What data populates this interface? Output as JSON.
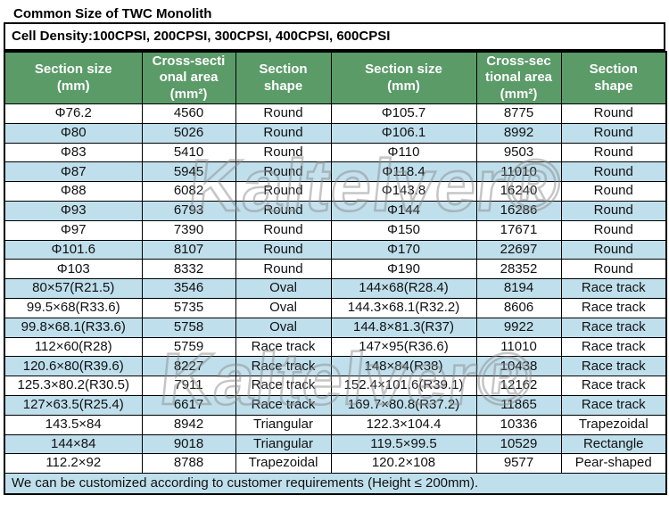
{
  "page": {
    "title": "Common Size of TWC Monolith",
    "subtitle": "Cell Density:100CPSI, 200CPSI, 300CPSI, 400CPSI, 600CPSI",
    "footer": "We can be customized according to customer requirements (Height ≤ 200mm).",
    "watermark": "Kaltelver®"
  },
  "colors": {
    "header_bg": "#5a9b68",
    "header_text": "#ffffff",
    "row_bg": "#ffffff",
    "row_alt_bg": "#bfdfec",
    "border": "#000000"
  },
  "table": {
    "headers": [
      "Section size\n(mm)",
      "Cross-secti\nonal area\n(mm²)",
      "Section\nshape",
      "Section size\n(mm)",
      "Cross-sec\ntional area\n(mm²)",
      "Section\nshape"
    ],
    "rows": [
      [
        "Φ76.2",
        "4560",
        "Round",
        "Φ105.7",
        "8775",
        "Round"
      ],
      [
        "Φ80",
        "5026",
        "Round",
        "Φ106.1",
        "8992",
        "Round"
      ],
      [
        "Φ83",
        "5410",
        "Round",
        "Φ110",
        "9503",
        "Round"
      ],
      [
        "Φ87",
        "5945",
        "Round",
        "Φ118.4",
        "11010",
        "Round"
      ],
      [
        "Φ88",
        "6082",
        "Round",
        "Φ143.8",
        "16240",
        "Round"
      ],
      [
        "Φ93",
        "6793",
        "Round",
        "Φ144",
        "16286",
        "Round"
      ],
      [
        "Φ97",
        "7390",
        "Round",
        "Φ150",
        "17671",
        "Round"
      ],
      [
        "Φ101.6",
        "8107",
        "Round",
        "Φ170",
        "22697",
        "Round"
      ],
      [
        "Φ103",
        "8332",
        "Round",
        "Φ190",
        "28352",
        "Round"
      ],
      [
        "80×57(R21.5)",
        "3546",
        "Oval",
        "144×68(R28.4)",
        "8194",
        "Race track"
      ],
      [
        "99.5×68(R33.6)",
        "5735",
        "Oval",
        "144.3×68.1(R32.2)",
        "8606",
        "Race track"
      ],
      [
        "99.8×68.1(R33.6)",
        "5758",
        "Oval",
        "144.8×81.3(R37)",
        "9922",
        "Race track"
      ],
      [
        "112×60(R28)",
        "5759",
        "Race track",
        "147×95(R36.6)",
        "11010",
        "Race track"
      ],
      [
        "120.6×80(R39.6)",
        "8227",
        "Race track",
        "148×84(R38)",
        "10438",
        "Race track"
      ],
      [
        "125.3×80.2(R30.5)",
        "7911",
        "Race track",
        "152.4×101.6(R39.1)",
        "12162",
        "Race track"
      ],
      [
        "127×63.5(R25.4)",
        "6617",
        "Race track",
        "169.7×80.8(R37.2)",
        "11865",
        "Race track"
      ],
      [
        "143.5×84",
        "8942",
        "Triangular",
        "122.3×104.4",
        "10336",
        "Trapezoidal"
      ],
      [
        "144×84",
        "9018",
        "Triangular",
        "119.5×99.5",
        "10529",
        "Rectangle"
      ],
      [
        "112.2×92",
        "8788",
        "Trapezoidal",
        "120.2×108",
        "9577",
        "Pear-shaped"
      ]
    ]
  }
}
